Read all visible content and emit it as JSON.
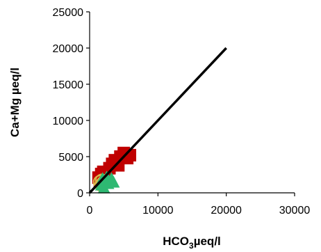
{
  "chart_data": {
    "type": "scatter",
    "xlabel": "HCO3µeq/l",
    "xlabel_main": "HCO",
    "xlabel_sub": "3",
    "xlabel_tail": "µeq/l",
    "ylabel": "Ca+Mg µeq/l",
    "xlim": [
      0,
      30000
    ],
    "ylim": [
      0,
      25000
    ],
    "xticks": [
      "0",
      "10000",
      "20000",
      "30000"
    ],
    "yticks": [
      "0",
      "5000",
      "10000",
      "15000",
      "20000",
      "25000"
    ],
    "grid": false,
    "legend": "none",
    "line_1to1": {
      "x": [
        0,
        20000
      ],
      "y": [
        0,
        20000
      ],
      "color": "#000000"
    },
    "series": [
      {
        "marker": "square",
        "color": "#c00000",
        "points": [
          [
            1300,
            2100
          ],
          [
            1700,
            2600
          ],
          [
            2000,
            2900
          ],
          [
            2400,
            2300
          ],
          [
            2900,
            3400
          ],
          [
            3300,
            4000
          ],
          [
            3700,
            4500
          ],
          [
            4200,
            3800
          ],
          [
            4500,
            5000
          ],
          [
            5000,
            5500
          ],
          [
            5500,
            4800
          ],
          [
            5900,
            5200
          ],
          [
            2200,
            1700
          ],
          [
            1500,
            1500
          ]
        ]
      },
      {
        "marker": "circle",
        "color": "#d9b84a",
        "points": [
          [
            1500,
            1500
          ],
          [
            1800,
            1700
          ],
          [
            2000,
            1400
          ],
          [
            1700,
            1100
          ]
        ]
      },
      {
        "marker": "triangle",
        "color": "#2eb872",
        "points": [
          [
            1700,
            1000
          ],
          [
            2300,
            1700
          ],
          [
            2700,
            1200
          ],
          [
            3200,
            1900
          ],
          [
            2100,
            600
          ],
          [
            3500,
            1400
          ],
          [
            2500,
            2100
          ],
          [
            1900,
            1900
          ]
        ]
      }
    ]
  }
}
